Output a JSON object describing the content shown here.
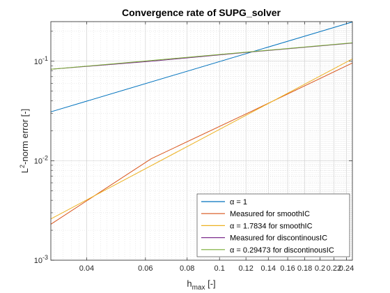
{
  "chart_data": {
    "type": "line",
    "title": "Convergence rate of SUPG_solver",
    "xlabel": {
      "base": "h",
      "sub": "max",
      "unit": " [-]"
    },
    "ylabel": {
      "pre": "L",
      "sup": "2",
      "post": "-norm error [-]"
    },
    "xscale": "log",
    "yscale": "log",
    "xlim": [
      0.03125,
      0.25
    ],
    "ylim": [
      0.001,
      0.25
    ],
    "grid": "on (major and minor)",
    "legend_position": "bottom-right",
    "xticks": [
      {
        "value": 0.04,
        "label": "0.04"
      },
      {
        "value": 0.06,
        "label": "0.06"
      },
      {
        "value": 0.08,
        "label": "0.08"
      },
      {
        "value": 0.1,
        "label": "0.1"
      },
      {
        "value": 0.12,
        "label": "0.12"
      },
      {
        "value": 0.14,
        "label": "0.14"
      },
      {
        "value": 0.16,
        "label": "0.16"
      },
      {
        "value": 0.18,
        "label": "0.18"
      },
      {
        "value": 0.2,
        "label": "0.2"
      },
      {
        "value": 0.22,
        "label": "0.22"
      },
      {
        "value": 0.24,
        "label": "0.24"
      }
    ],
    "yticks": [
      {
        "value": 0.001,
        "base": "10",
        "exp": "-3"
      },
      {
        "value": 0.01,
        "base": "10",
        "exp": "-2"
      },
      {
        "value": 0.1,
        "base": "10",
        "exp": "-1"
      }
    ],
    "series": [
      {
        "legend": "α = 1",
        "color": "#0072BD",
        "x": [
          0.03125,
          0.25
        ],
        "y": [
          0.031,
          0.248
        ]
      },
      {
        "legend": "Measured for smoothIC",
        "color": "#D95319",
        "x": [
          0.03125,
          0.0625,
          0.125,
          0.25
        ],
        "y": [
          0.0023,
          0.0105,
          0.0315,
          0.096
        ]
      },
      {
        "legend": "α = 1.7834 for smoothIC",
        "color": "#EDB120",
        "x": [
          0.03125,
          0.25
        ],
        "y": [
          0.0026,
          0.1056
        ]
      },
      {
        "legend": "Measured for discontinousIC",
        "color": "#7E2F8E",
        "x": [
          0.03125,
          0.0625,
          0.125,
          0.25
        ],
        "y": [
          0.083,
          0.1,
          0.124,
          0.152
        ]
      },
      {
        "legend": "α = 0.29473 for discontinousIC",
        "color": "#77AC30",
        "x": [
          0.03125,
          0.25
        ],
        "y": [
          0.083,
          0.153
        ]
      }
    ]
  }
}
